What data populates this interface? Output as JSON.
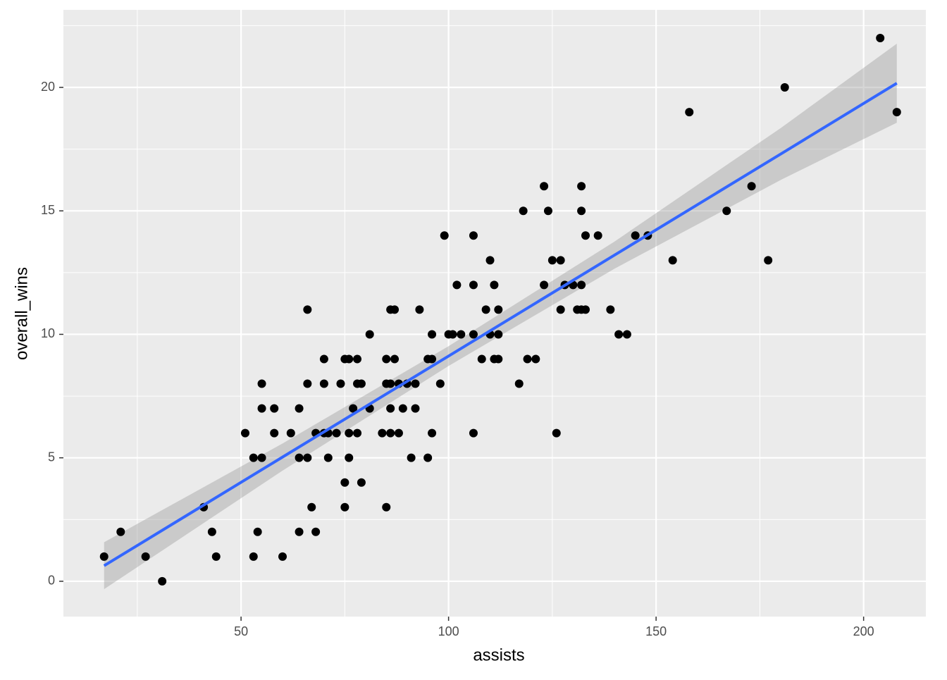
{
  "chart_data": {
    "type": "scatter",
    "x_label": "assists",
    "y_label": "overall_wins",
    "xlim": [
      7.2,
      215
    ],
    "ylim": [
      -1.43,
      23.14
    ],
    "xticks": [
      50,
      100,
      150,
      200
    ],
    "yticks": [
      0,
      5,
      10,
      15,
      20
    ],
    "x_minor_ticks": [
      25,
      75,
      125,
      175
    ],
    "y_minor_ticks": [
      2.5,
      7.5,
      12.5,
      17.5,
      22.5
    ],
    "grid": true,
    "color": "#000000",
    "x": [
      17,
      21,
      27,
      31,
      41,
      43,
      44,
      51,
      53,
      53,
      54,
      55,
      55,
      55,
      58,
      58,
      60,
      62,
      64,
      64,
      64,
      66,
      66,
      66,
      67,
      68,
      68,
      70,
      70,
      70,
      71,
      71,
      73,
      74,
      75,
      75,
      75,
      76,
      76,
      76,
      77,
      78,
      78,
      78,
      79,
      79,
      81,
      81,
      84,
      85,
      85,
      85,
      86,
      86,
      86,
      86,
      87,
      87,
      88,
      88,
      89,
      90,
      91,
      92,
      92,
      93,
      95,
      95,
      96,
      96,
      96,
      98,
      99,
      100,
      101,
      102,
      103,
      106,
      106,
      106,
      106,
      108,
      109,
      110,
      110,
      111,
      111,
      112,
      112,
      112,
      117,
      118,
      119,
      121,
      123,
      123,
      124,
      125,
      126,
      127,
      127,
      128,
      130,
      131,
      132,
      132,
      132,
      132,
      133,
      133,
      136,
      139,
      141,
      143,
      145,
      148,
      154,
      158,
      167,
      173,
      177,
      181,
      204,
      208
    ],
    "values": [
      1,
      2,
      1,
      0,
      3,
      2,
      1,
      6,
      5,
      1,
      2,
      8,
      7,
      5,
      7,
      6,
      1,
      6,
      7,
      5,
      2,
      11,
      8,
      5,
      3,
      6,
      2,
      9,
      8,
      6,
      6,
      5,
      6,
      8,
      9,
      4,
      3,
      9,
      6,
      5,
      7,
      9,
      6,
      8,
      8,
      4,
      10,
      7,
      6,
      9,
      8,
      3,
      11,
      8,
      7,
      6,
      11,
      9,
      8,
      6,
      7,
      8,
      5,
      8,
      7,
      11,
      9,
      5,
      9,
      10,
      6,
      8,
      14,
      10,
      10,
      12,
      10,
      14,
      12,
      10,
      6,
      9,
      11,
      13,
      10,
      12,
      9,
      11,
      10,
      9,
      8,
      15,
      9,
      9,
      16,
      12,
      15,
      13,
      6,
      13,
      11,
      12,
      12,
      11,
      16,
      15,
      12,
      11,
      14,
      11,
      14,
      11,
      10,
      10,
      14,
      14,
      13,
      19,
      15,
      16,
      13,
      20,
      22,
      19
    ],
    "fit": {
      "color": "#3366FF",
      "band_color": "#999999",
      "x": [
        17,
        60,
        100,
        140,
        180,
        208
      ],
      "values": [
        0.63,
        5.03,
        9.12,
        13.21,
        17.3,
        20.17
      ],
      "lower": [
        -0.32,
        4.48,
        8.72,
        12.66,
        16.25,
        18.57
      ],
      "upper": [
        1.58,
        5.58,
        9.52,
        13.76,
        18.35,
        21.77
      ]
    }
  }
}
